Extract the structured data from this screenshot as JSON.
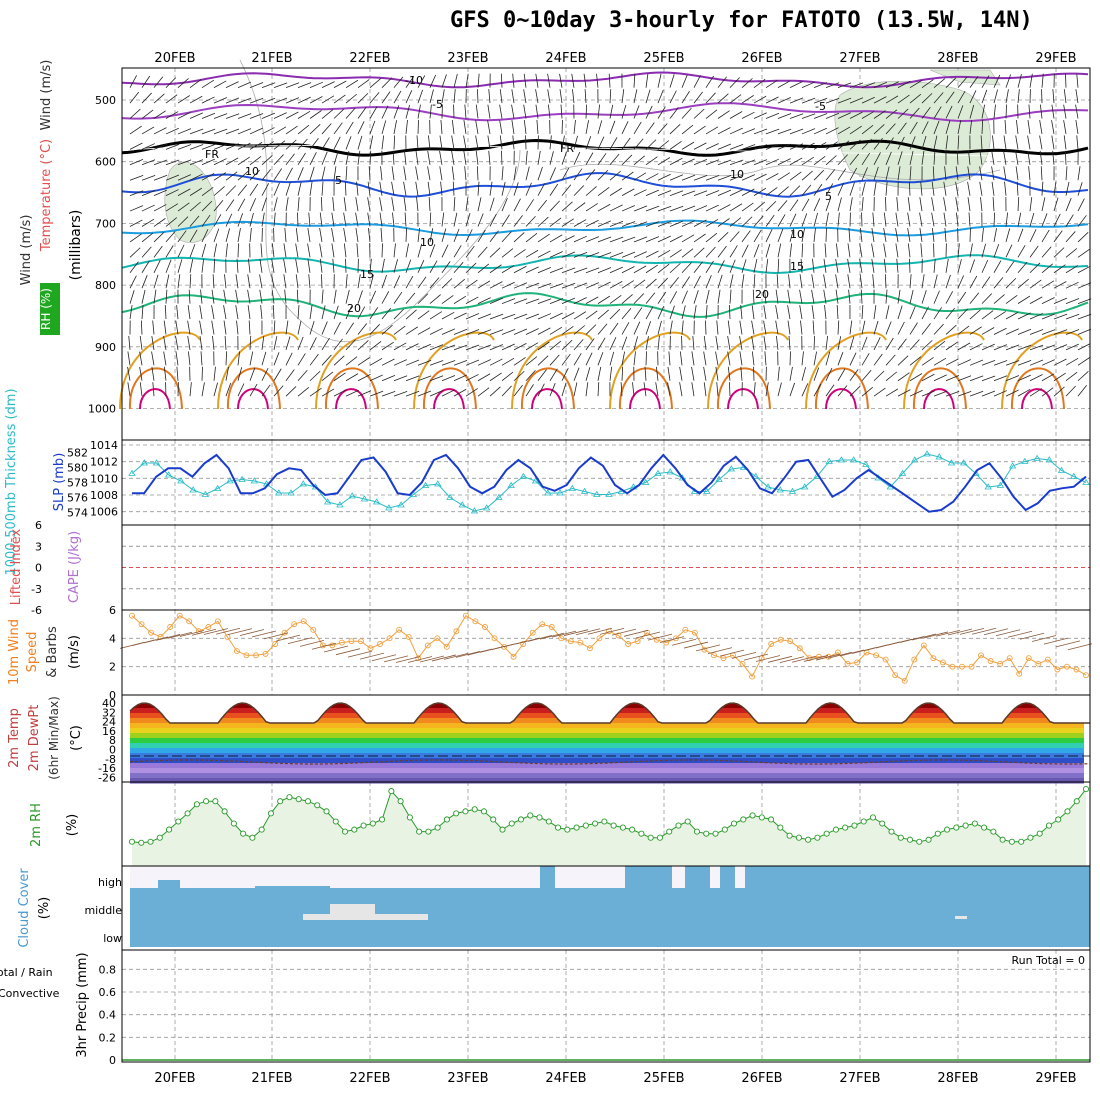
{
  "title": "GFS 0~10day 3-hourly for FATOTO (13.5W, 14N)",
  "dates": [
    "20FEB",
    "21FEB",
    "22FEB",
    "23FEB",
    "24FEB",
    "25FEB",
    "26FEB",
    "27FEB",
    "28FEB",
    "29FEB"
  ],
  "colors": {
    "temp_neg10": "#8a2bb0",
    "temp_neg5": "#9b3fc0",
    "freeze": "#000000",
    "temp5": "#1f4fd8",
    "temp10": "#1b9ce0",
    "temp15": "#12b5b0",
    "temp20": "#1fb37a",
    "temp25": "#e0a020",
    "temp30": "#e07820",
    "temp35": "#d0007a",
    "slp": "#1a3ccc",
    "thickness": "#2bbcc8",
    "lifted_zero": "#e05050",
    "wind_speed": "#f0a040",
    "rh": "#2a9a2a",
    "rh_fill": "#e8f3e4",
    "cloud": "#6baed6",
    "cloud_clear": "#f6f3fa",
    "cloud_mid_gap": "#e6e6e6"
  },
  "panels": {
    "sounding": {
      "ylabel_wind": "Wind (m/s)",
      "ylabel_temp": "Temperature (°C)",
      "ylabel_rh": "RH (%)",
      "ylabel_axis": "(millibars)",
      "yticks": [
        "500",
        "600",
        "700",
        "800",
        "900",
        "1000"
      ],
      "contour_labels": [
        {
          "text": "-10",
          "color": "temp_neg10"
        },
        {
          "text": "-5",
          "color": "temp_neg10"
        },
        {
          "text": "-5",
          "color": "temp_neg10"
        },
        {
          "text": "FR",
          "color": "freeze"
        },
        {
          "text": "FR",
          "color": "freeze"
        },
        {
          "text": "5",
          "color": "temp5"
        },
        {
          "text": "5",
          "color": "temp5"
        },
        {
          "text": "10",
          "color": "temp10"
        },
        {
          "text": "10",
          "color": "temp10"
        },
        {
          "text": "15",
          "color": "temp15"
        },
        {
          "text": "15",
          "color": "temp15"
        },
        {
          "text": "20",
          "color": "temp20"
        },
        {
          "text": "20",
          "color": "temp20"
        },
        {
          "text": "10",
          "color": "freeze"
        },
        {
          "text": "10",
          "color": "freeze"
        }
      ]
    },
    "thickness": {
      "ylabel_left": "1000-500mb Thickness (dm)",
      "ylabel_right": "SLP (mb)",
      "yticks_left": [
        "582",
        "580",
        "578",
        "576",
        "574"
      ],
      "yticks_right": [
        "1014",
        "1012",
        "1010",
        "1008",
        "1006"
      ]
    },
    "stability": {
      "ylabel_left": "Lifted Index",
      "ylabel_right": "CAPE (J/kg)",
      "yticks": [
        "6",
        "3",
        "0",
        "-3",
        "-6"
      ]
    },
    "wind10m": {
      "ylabel_left": "10m Wind Speed & Barbs",
      "ylabel_right": "(m/s)",
      "yticks": [
        "6",
        "4",
        "2",
        "0"
      ]
    },
    "temp2m": {
      "ylabel_left": "2m Temp",
      "ylabel_mid": "2m DewPt",
      "ylabel_right": "(6hr Min/Max)",
      "ylabel_unit": "(°C)",
      "yticks": [
        "40",
        "32",
        "24",
        "16",
        "8",
        "0",
        "-8",
        "-16",
        "-26"
      ]
    },
    "rh2m": {
      "ylabel_left": "2m RH",
      "ylabel_right": "(%)"
    },
    "cloud": {
      "ylabel_left": "Cloud Cover",
      "ylabel_right": "(%)",
      "levels": [
        "high",
        "middle",
        "low"
      ]
    },
    "precip": {
      "ylabel_left": "Total / Rain",
      "ylabel_left2": "Convective",
      "ylabel_right": "3hr Precip (mm)",
      "yticks": [
        "0.8",
        "0.6",
        "0.4",
        "0.2",
        "0"
      ],
      "run_total": "Run Total = 0"
    }
  },
  "chart_data": [
    {
      "type": "line",
      "panel": "thickness",
      "series": [
        {
          "name": "SLP (mb)",
          "ylim": [
            1005,
            1014
          ],
          "values": [
            1008.2,
            1008.2,
            1010.2,
            1011.2,
            1011.2,
            1010.2,
            1011.8,
            1012.8,
            1011.2,
            1008.2,
            1008.2,
            1008.8,
            1010.5,
            1011.2,
            1011.0,
            1009.2,
            1008.0,
            1008.2,
            1010.2,
            1012.2,
            1012.5,
            1010.8,
            1008.2,
            1008.0,
            1009.5,
            1012.2,
            1012.8,
            1011.2,
            1009.0,
            1008.2,
            1009.0,
            1011.0,
            1012.2,
            1011.2,
            1009.0,
            1008.5,
            1009.2,
            1011.2,
            1012.5,
            1011.5,
            1009.2,
            1008.2,
            1009.2,
            1011.2,
            1012.8,
            1011.2,
            1009.2,
            1008.2,
            1009.5,
            1011.5,
            1012.6,
            1011.0,
            1008.8,
            1008.2,
            1010.0,
            1012.0,
            1012.2,
            1010.0,
            1007.8,
            1008.6,
            1010.0,
            1011.0,
            1010.0,
            1009.0,
            1008.0,
            1007.0,
            1006.0,
            1006.2,
            1007.2,
            1009.0,
            1011.0,
            1011.8,
            1010.0,
            1007.8,
            1006.2,
            1007.0,
            1008.5,
            1008.8,
            1009.0,
            1010.2
          ]
        },
        {
          "name": "1000-500mb Thickness (dm)",
          "ylim": [
            573,
            583
          ],
          "values": [
            579.2,
            580.6,
            580.6,
            579.0,
            578.2,
            577.0,
            576.4,
            577.2,
            578.2,
            578.4,
            578.2,
            577.8,
            576.6,
            576.6,
            577.8,
            577.4,
            575.4,
            575.0,
            576.2,
            575.8,
            575.4,
            574.6,
            575.0,
            576.4,
            577.6,
            577.8,
            576.0,
            575.0,
            574.2,
            574.6,
            576.0,
            577.6,
            578.8,
            578.2,
            576.6,
            576.6,
            577.2,
            576.8,
            576.4,
            576.4,
            576.8,
            577.4,
            578.0,
            579.2,
            579.4,
            578.6,
            576.8,
            576.8,
            578.4,
            579.8,
            580.0,
            578.8,
            577.4,
            577.0,
            576.8,
            577.4,
            578.8,
            580.8,
            581.0,
            581.0,
            580.4,
            578.6,
            577.4,
            579.2,
            581.0,
            581.8,
            581.4,
            580.6,
            580.6,
            579.2,
            577.4,
            577.6,
            580.2,
            580.8,
            581.2,
            581.0,
            579.6,
            578.8,
            578.0
          ]
        }
      ]
    },
    {
      "type": "line",
      "panel": "stability",
      "series": [
        {
          "name": "Lifted Index",
          "ylim": [
            -6,
            6
          ],
          "values": [
            0
          ]
        }
      ]
    },
    {
      "type": "line",
      "panel": "wind10m",
      "series": [
        {
          "name": "Speed",
          "ylim": [
            0,
            6
          ],
          "values": [
            5.6,
            5.0,
            4.4,
            4.1,
            4.8,
            5.6,
            5.2,
            4.5,
            4.8,
            5.2,
            4.1,
            3.1,
            2.8,
            2.8,
            2.9,
            3.6,
            4.4,
            5.0,
            5.2,
            4.6,
            3.5,
            3.5,
            3.7,
            3.8,
            3.8,
            3.3,
            3.6,
            4.0,
            4.6,
            4.1,
            2.6,
            3.5,
            4.0,
            3.4,
            4.5,
            5.6,
            5.2,
            4.8,
            4.0,
            3.4,
            2.7,
            3.6,
            4.4,
            5.0,
            4.8,
            4.0,
            3.8,
            3.7,
            3.3,
            4.0,
            4.5,
            4.2,
            3.6,
            3.8,
            4.4,
            3.9,
            3.7,
            4.0,
            4.6,
            4.4,
            3.2,
            2.8,
            2.6,
            2.8,
            2.2,
            1.3,
            2.6,
            3.6,
            3.9,
            3.8,
            3.3,
            2.6,
            2.7,
            2.7,
            3.0,
            2.2,
            2.3,
            3.0,
            2.8,
            2.5,
            1.4,
            1.0,
            2.5,
            3.5,
            2.6,
            2.3,
            2.0,
            2.0,
            2.0,
            2.8,
            2.4,
            2.2,
            2.6,
            1.5,
            2.6,
            2.2,
            2.5,
            1.8,
            2.0,
            1.8,
            1.4
          ]
        }
      ]
    },
    {
      "type": "line",
      "panel": "rh2m",
      "series": [
        {
          "name": "2m RH",
          "values": [
            18,
            17,
            18,
            22,
            30,
            38,
            46,
            55,
            58,
            58,
            48,
            36,
            26,
            22,
            30,
            46,
            58,
            62,
            60,
            58,
            54,
            48,
            38,
            28,
            30,
            34,
            36,
            40,
            68,
            58,
            42,
            28,
            28,
            32,
            40,
            46,
            48,
            50,
            48,
            40,
            30,
            36,
            40,
            44,
            42,
            38,
            32,
            30,
            32,
            34,
            36,
            38,
            34,
            32,
            30,
            26,
            22,
            22,
            28,
            34,
            38,
            28,
            26,
            26,
            30,
            36,
            40,
            44,
            42,
            40,
            32,
            24,
            22,
            20,
            22,
            26,
            30,
            32,
            34,
            38,
            42,
            36,
            28,
            22,
            20,
            18,
            20,
            26,
            30,
            32,
            34,
            36,
            32,
            28,
            20,
            18,
            18,
            22,
            26,
            34,
            40,
            48,
            58,
            70
          ]
        }
      ]
    },
    {
      "type": "line",
      "panel": "precip",
      "series": [
        {
          "name": "Total / Rain",
          "ylim": [
            0,
            0.9
          ],
          "values": [
            0
          ]
        },
        {
          "name": "Convective",
          "ylim": [
            0,
            0.9
          ],
          "values": [
            0
          ]
        }
      ]
    }
  ]
}
